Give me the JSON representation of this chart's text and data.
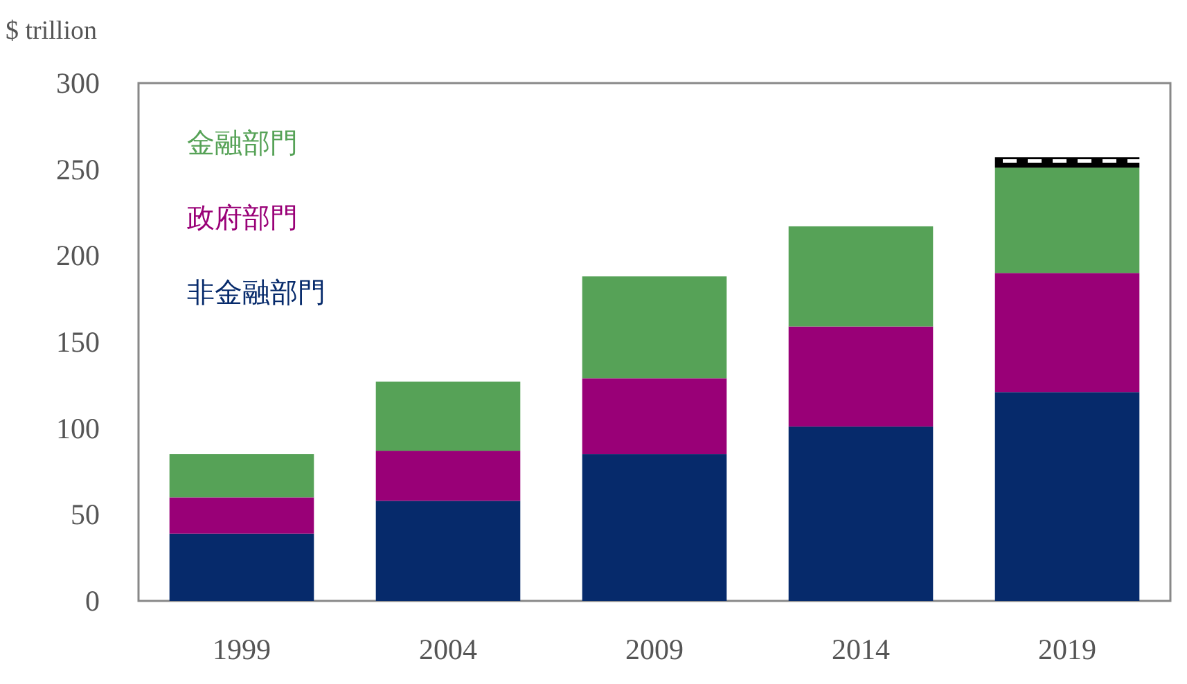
{
  "chart_data": {
    "type": "bar",
    "stacked": true,
    "ylabel": "$ trillion",
    "categories": [
      "1999",
      "2004",
      "2009",
      "2014",
      "2019"
    ],
    "series": [
      {
        "name": "非金融部門",
        "color": "#062a6b",
        "values": [
          39,
          58,
          85,
          101,
          121
        ]
      },
      {
        "name": "政府部門",
        "color": "#990077",
        "values": [
          21,
          29,
          44,
          58,
          69
        ]
      },
      {
        "name": "金融部門",
        "color": "#56a257",
        "values": [
          25,
          40,
          59,
          58,
          61
        ]
      },
      {
        "color": "#000000",
        "values": [
          null,
          null,
          null,
          null,
          6
        ]
      }
    ],
    "ylim": [
      0,
      300
    ],
    "yticks": [
      0,
      50,
      100,
      150,
      200,
      250,
      300
    ],
    "legend": "top left",
    "grid": false
  }
}
